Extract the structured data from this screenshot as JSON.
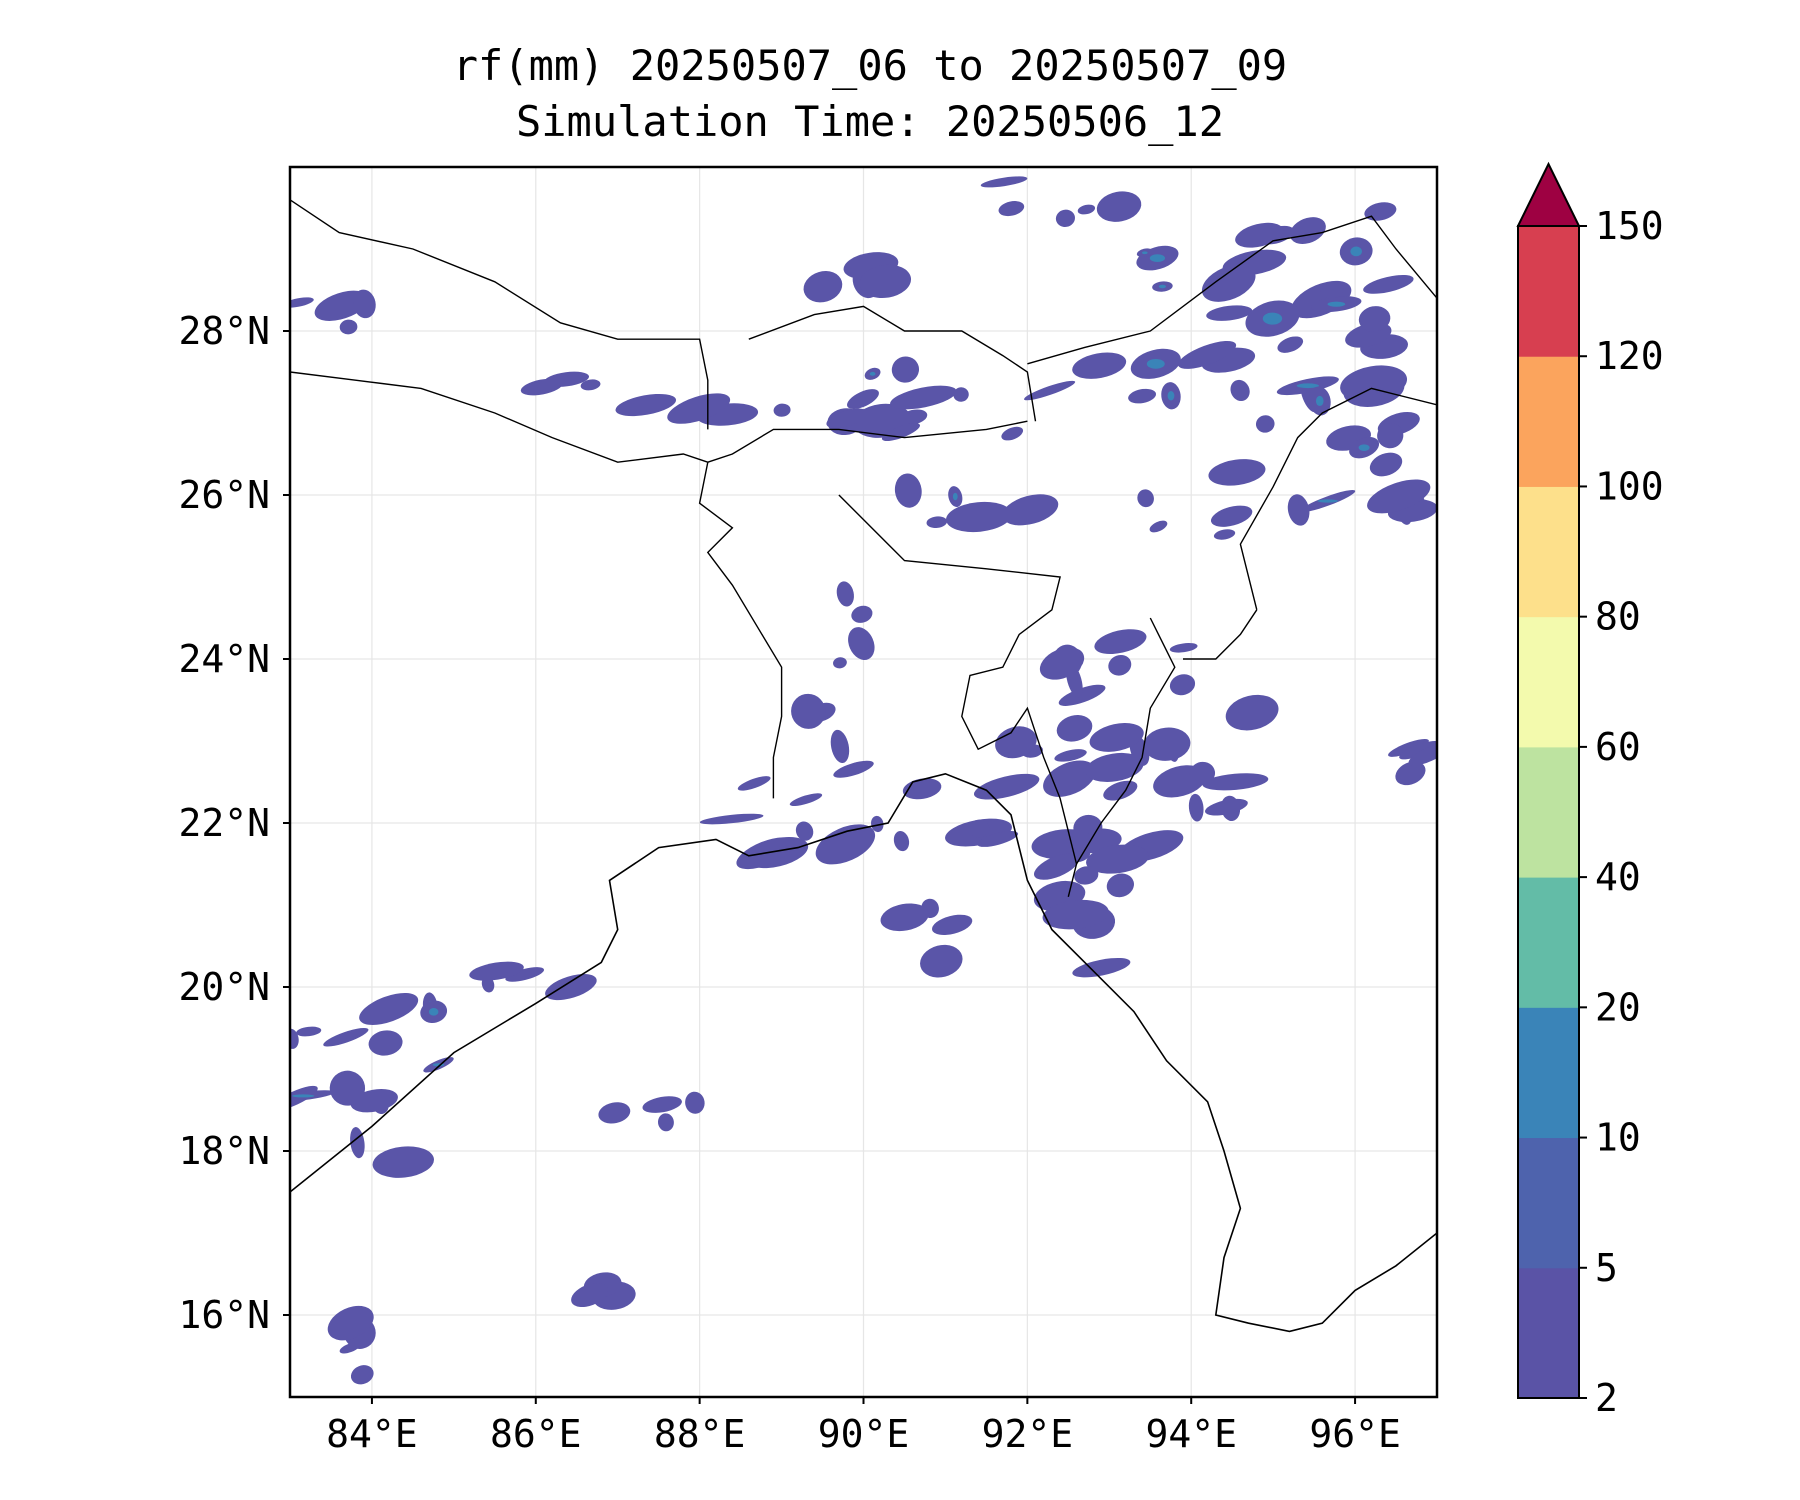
{
  "title": {
    "line1": "rf(mm) 20250507_06 to 20250507_09",
    "line2": "Simulation Time: 20250506_12"
  },
  "map": {
    "lon_range": [
      83,
      97
    ],
    "lat_range": [
      15,
      30
    ],
    "grid": true,
    "x_ticks": [
      {
        "value": 84,
        "label": "84°E"
      },
      {
        "value": 86,
        "label": "86°E"
      },
      {
        "value": 88,
        "label": "88°E"
      },
      {
        "value": 90,
        "label": "90°E"
      },
      {
        "value": 92,
        "label": "92°E"
      },
      {
        "value": 94,
        "label": "94°E"
      },
      {
        "value": 96,
        "label": "96°E"
      }
    ],
    "y_ticks": [
      {
        "value": 16,
        "label": "16°N"
      },
      {
        "value": 18,
        "label": "18°N"
      },
      {
        "value": 20,
        "label": "20°N"
      },
      {
        "value": 22,
        "label": "22°N"
      },
      {
        "value": 24,
        "label": "24°N"
      },
      {
        "value": 26,
        "label": "26°N"
      },
      {
        "value": 28,
        "label": "28°N"
      }
    ],
    "rain_color": "#5a55a8",
    "rain_color_heavy": "#3a84b8",
    "rain_patches": [
      {
        "lon": [
          93.4,
          96.6
        ],
        "lat": [
          27.0,
          29.6
        ],
        "level": 1
      },
      {
        "lon": [
          90.0,
          93.0
        ],
        "lat": [
          26.7,
          27.6
        ],
        "level": 1
      },
      {
        "lon": [
          89.0,
          90.0
        ],
        "lat": [
          26.8,
          27.2
        ],
        "level": 0
      },
      {
        "lon": [
          87.2,
          89.0
        ],
        "lat": [
          26.9,
          27.2
        ],
        "level": 0
      },
      {
        "lon": [
          86.0,
          86.7
        ],
        "lat": [
          27.3,
          27.5
        ],
        "level": 0
      },
      {
        "lon": [
          83.1,
          84.0
        ],
        "lat": [
          28.0,
          28.4
        ],
        "level": 0
      },
      {
        "lon": [
          91.4,
          93.2
        ],
        "lat": [
          29.2,
          29.9
        ],
        "level": 0
      },
      {
        "lon": [
          89.4,
          90.4
        ],
        "lat": [
          28.5,
          29.0
        ],
        "level": 0
      },
      {
        "lon": [
          90.4,
          93.0
        ],
        "lat": [
          25.5,
          26.1
        ],
        "level": 1
      },
      {
        "lon": [
          93.2,
          95.2
        ],
        "lat": [
          25.4,
          26.0
        ],
        "level": 0
      },
      {
        "lon": [
          94.5,
          97.0
        ],
        "lat": [
          25.6,
          27.2
        ],
        "level": 1
      },
      {
        "lon": [
          92.4,
          94.8
        ],
        "lat": [
          21.2,
          24.3
        ],
        "level": 0
      },
      {
        "lon": [
          91.2,
          92.5
        ],
        "lat": [
          21.8,
          23.0
        ],
        "level": 0
      },
      {
        "lon": [
          92.1,
          93.3
        ],
        "lat": [
          19.6,
          21.6
        ],
        "level": 0
      },
      {
        "lon": [
          88.3,
          91.0
        ],
        "lat": [
          21.6,
          22.6
        ],
        "level": 1
      },
      {
        "lon": [
          89.7,
          90.1
        ],
        "lat": [
          23.9,
          24.8
        ],
        "level": 0
      },
      {
        "lon": [
          89.3,
          90.1
        ],
        "lat": [
          22.6,
          23.5
        ],
        "level": 0
      },
      {
        "lon": [
          90.5,
          91.2
        ],
        "lat": [
          19.8,
          21.4
        ],
        "level": 0
      },
      {
        "lon": [
          85.4,
          86.6
        ],
        "lat": [
          19.9,
          20.2
        ],
        "level": 0
      },
      {
        "lon": [
          83.0,
          85.0
        ],
        "lat": [
          17.8,
          19.8
        ],
        "level": 1
      },
      {
        "lon": [
          86.8,
          88.0
        ],
        "lat": [
          18.3,
          18.6
        ],
        "level": 0
      },
      {
        "lon": [
          86.3,
          87.0
        ],
        "lat": [
          16.1,
          16.5
        ],
        "level": 0
      },
      {
        "lon": [
          83.0,
          84.0
        ],
        "lat": [
          15.0,
          16.0
        ],
        "level": 0
      },
      {
        "lon": [
          96.4,
          97.0
        ],
        "lat": [
          22.6,
          23.0
        ],
        "level": 0
      }
    ],
    "coastline": [
      [
        83.0,
        17.5
      ],
      [
        84.0,
        18.3
      ],
      [
        85.0,
        19.2
      ],
      [
        86.0,
        19.8
      ],
      [
        86.8,
        20.3
      ],
      [
        87.0,
        20.7
      ],
      [
        86.9,
        21.3
      ],
      [
        87.5,
        21.7
      ],
      [
        88.2,
        21.8
      ],
      [
        88.6,
        21.6
      ],
      [
        89.2,
        21.7
      ],
      [
        89.8,
        21.9
      ],
      [
        90.3,
        22.0
      ],
      [
        90.6,
        22.5
      ],
      [
        91.0,
        22.6
      ],
      [
        91.5,
        22.4
      ],
      [
        91.8,
        22.1
      ],
      [
        92.0,
        21.3
      ],
      [
        92.3,
        20.7
      ],
      [
        92.8,
        20.2
      ],
      [
        93.3,
        19.7
      ],
      [
        93.7,
        19.1
      ],
      [
        94.2,
        18.6
      ],
      [
        94.4,
        18.0
      ],
      [
        94.6,
        17.3
      ],
      [
        94.4,
        16.7
      ],
      [
        94.3,
        16.0
      ],
      [
        94.7,
        15.9
      ],
      [
        95.2,
        15.8
      ],
      [
        95.6,
        15.9
      ],
      [
        96.0,
        16.3
      ],
      [
        96.5,
        16.6
      ],
      [
        97.0,
        17.0
      ]
    ],
    "borders": [
      [
        [
          83.0,
          29.6
        ],
        [
          83.6,
          29.2
        ],
        [
          84.5,
          29.0
        ],
        [
          85.5,
          28.6
        ],
        [
          86.3,
          28.1
        ],
        [
          87.0,
          27.9
        ],
        [
          88.0,
          27.9
        ],
        [
          88.1,
          27.4
        ],
        [
          88.1,
          26.8
        ]
      ],
      [
        [
          83.0,
          27.5
        ],
        [
          83.8,
          27.4
        ],
        [
          84.6,
          27.3
        ],
        [
          85.5,
          27.0
        ],
        [
          86.2,
          26.7
        ],
        [
          87.0,
          26.4
        ],
        [
          87.8,
          26.5
        ],
        [
          88.1,
          26.4
        ]
      ],
      [
        [
          88.1,
          26.4
        ],
        [
          88.4,
          26.5
        ],
        [
          88.9,
          26.8
        ],
        [
          89.7,
          26.8
        ],
        [
          90.5,
          26.7
        ],
        [
          91.5,
          26.8
        ],
        [
          92.0,
          26.9
        ]
      ],
      [
        [
          88.6,
          27.9
        ],
        [
          89.4,
          28.2
        ],
        [
          90.0,
          28.3
        ],
        [
          90.5,
          28.0
        ],
        [
          91.2,
          28.0
        ],
        [
          91.7,
          27.7
        ],
        [
          92.0,
          27.5
        ],
        [
          92.1,
          26.9
        ]
      ],
      [
        [
          92.0,
          27.6
        ],
        [
          92.7,
          27.8
        ],
        [
          93.5,
          28.0
        ],
        [
          94.3,
          28.6
        ],
        [
          95.0,
          29.1
        ],
        [
          95.6,
          29.2
        ],
        [
          96.2,
          29.4
        ],
        [
          96.5,
          29.0
        ],
        [
          97.0,
          28.4
        ]
      ],
      [
        [
          88.1,
          26.4
        ],
        [
          88.0,
          25.9
        ],
        [
          88.4,
          25.6
        ],
        [
          88.1,
          25.3
        ],
        [
          88.4,
          24.9
        ],
        [
          88.7,
          24.4
        ],
        [
          89.0,
          23.9
        ],
        [
          89.0,
          23.3
        ],
        [
          88.9,
          22.8
        ],
        [
          88.9,
          22.3
        ]
      ],
      [
        [
          89.7,
          26.0
        ],
        [
          90.5,
          25.2
        ],
        [
          91.5,
          25.1
        ],
        [
          92.4,
          25.0
        ],
        [
          92.3,
          24.6
        ],
        [
          91.9,
          24.3
        ],
        [
          91.7,
          23.9
        ],
        [
          91.3,
          23.8
        ],
        [
          91.2,
          23.3
        ],
        [
          91.4,
          22.9
        ],
        [
          91.8,
          23.1
        ],
        [
          92.0,
          23.4
        ],
        [
          92.2,
          22.8
        ],
        [
          92.4,
          22.3
        ],
        [
          92.6,
          21.5
        ],
        [
          92.5,
          21.1
        ]
      ],
      [
        [
          93.5,
          24.5
        ],
        [
          93.8,
          23.9
        ],
        [
          93.5,
          23.4
        ],
        [
          93.4,
          22.8
        ],
        [
          93.2,
          22.4
        ],
        [
          92.9,
          22.0
        ],
        [
          92.6,
          21.5
        ]
      ],
      [
        [
          94.8,
          24.6
        ],
        [
          94.6,
          25.4
        ],
        [
          95.0,
          26.1
        ],
        [
          95.3,
          26.7
        ],
        [
          95.6,
          27.0
        ],
        [
          96.2,
          27.3
        ],
        [
          97.0,
          27.1
        ]
      ],
      [
        [
          93.9,
          24.0
        ],
        [
          94.3,
          24.0
        ],
        [
          94.6,
          24.3
        ],
        [
          94.8,
          24.6
        ]
      ]
    ]
  },
  "colorbar": {
    "levels": [
      2,
      5,
      10,
      20,
      40,
      60,
      80,
      100,
      120,
      150
    ],
    "tick_labels": [
      "2",
      "5",
      "10",
      "20",
      "40",
      "60",
      "80",
      "100",
      "120",
      "150"
    ],
    "colors": [
      "#5a53a6",
      "#4e63ad",
      "#3a84b8",
      "#63bca7",
      "#bde3a0",
      "#f3faad",
      "#fde08b",
      "#fba45d",
      "#d73f50"
    ],
    "extend_color": "#9e0142",
    "extend": "max"
  }
}
